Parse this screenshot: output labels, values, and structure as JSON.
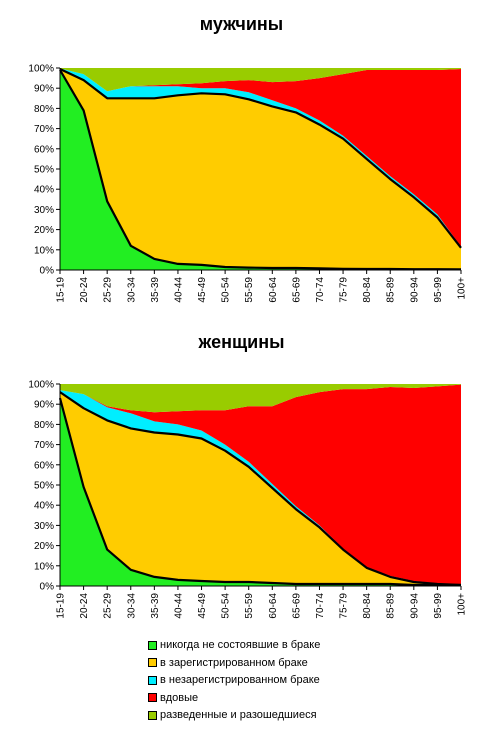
{
  "chart_data": [
    {
      "type": "area",
      "stacked": true,
      "percent": true,
      "title": "мужчины",
      "categories": [
        "15-19",
        "20-24",
        "25-29",
        "30-34",
        "35-39",
        "40-44",
        "45-49",
        "50-54",
        "55-59",
        "60-64",
        "65-69",
        "70-74",
        "75-79",
        "80-84",
        "85-89",
        "90-94",
        "95-99",
        "100+"
      ],
      "ylim": [
        0,
        100
      ],
      "yticks": [
        "0%",
        "10%",
        "20%",
        "30%",
        "40%",
        "50%",
        "60%",
        "70%",
        "80%",
        "90%",
        "100%"
      ],
      "grid": false,
      "series": [
        {
          "name": "никогда не состоявшие в браке",
          "color": "#22ee22",
          "values": [
            99,
            79,
            34,
            12,
            5.5,
            3,
            2.5,
            1.5,
            1.2,
            1,
            1,
            0.8,
            0.6,
            0.5,
            0.5,
            0.4,
            0.4,
            0.3
          ]
        },
        {
          "name": "в зарегистрированном браке",
          "color": "#ffcc00",
          "values": [
            0.5,
            15,
            51,
            73,
            79.5,
            83.5,
            85,
            85.5,
            83.3,
            80,
            77,
            71.2,
            64.4,
            54.5,
            44.5,
            35.6,
            25.6,
            10.7
          ]
        },
        {
          "name": "в незарегистрированном браке",
          "color": "#00eeff",
          "values": [
            0.3,
            3,
            3.5,
            6,
            6,
            4.5,
            2.5,
            3,
            3.5,
            3,
            2,
            2,
            1.5,
            1.5,
            1.5,
            1.5,
            1.5,
            0.5
          ]
        },
        {
          "name": "вдовые",
          "color": "#ff0000",
          "values": [
            0,
            0,
            0,
            0,
            0.5,
            1,
            2.5,
            3.5,
            6,
            9,
            13.5,
            21,
            30.5,
            42.5,
            52.5,
            61.5,
            71.5,
            88
          ]
        },
        {
          "name": "разведенные и разошедшиеся",
          "color": "#99cc00",
          "values": [
            0.2,
            3,
            11.5,
            9,
            8.5,
            8,
            7.5,
            6.5,
            6,
            7,
            6.5,
            5,
            3,
            1,
            1,
            1,
            1,
            0.5
          ]
        }
      ]
    },
    {
      "type": "area",
      "stacked": true,
      "percent": true,
      "title": "женщины",
      "categories": [
        "15-19",
        "20-24",
        "25-29",
        "30-34",
        "35-39",
        "40-44",
        "45-49",
        "50-54",
        "55-59",
        "60-64",
        "65-69",
        "70-74",
        "75-79",
        "80-84",
        "85-89",
        "90-94",
        "95-99",
        "100+"
      ],
      "ylim": [
        0,
        100
      ],
      "yticks": [
        "0%",
        "10%",
        "20%",
        "30%",
        "40%",
        "50%",
        "60%",
        "70%",
        "80%",
        "90%",
        "100%"
      ],
      "grid": false,
      "series": [
        {
          "name": "никогда не состоявшие в браке",
          "color": "#22ee22",
          "values": [
            93,
            49,
            18,
            8,
            4.5,
            3,
            2.5,
            2,
            2,
            1.5,
            1,
            1,
            1,
            1,
            1,
            0.5,
            0.5,
            0.5
          ]
        },
        {
          "name": "в зарегистрированном браке",
          "color": "#ffcc00",
          "values": [
            3,
            39,
            64,
            70,
            71.5,
            72,
            70.5,
            65,
            57,
            47,
            37,
            28,
            17,
            8,
            3.5,
            1.5,
            0.5,
            0
          ]
        },
        {
          "name": "в незарегистрированном браке",
          "color": "#00eeff",
          "values": [
            1,
            7,
            6.5,
            7.5,
            5.5,
            5,
            4,
            3,
            2.5,
            2,
            1.5,
            1,
            0.5,
            0.5,
            0.5,
            0.5,
            0.3,
            0.2
          ]
        },
        {
          "name": "вдовые",
          "color": "#ff0000",
          "values": [
            0,
            0,
            0.5,
            1.5,
            4.5,
            6.5,
            10,
            17,
            27.5,
            38.5,
            54,
            66,
            79,
            88,
            93.5,
            95.5,
            97.5,
            99
          ]
        },
        {
          "name": "разведенные и разошедшиеся",
          "color": "#99cc00",
          "values": [
            3,
            5,
            11,
            13,
            14,
            13.5,
            13,
            13,
            11,
            11,
            6.5,
            4,
            2.5,
            2.5,
            1.5,
            2,
            1.2,
            0.3
          ]
        }
      ]
    }
  ],
  "legend": [
    {
      "label": "никогда не состоявшие в браке",
      "color": "#22ee22"
    },
    {
      "label": "в зарегистрированном браке",
      "color": "#ffcc00"
    },
    {
      "label": "в незарегистрированном браке",
      "color": "#00eeff"
    },
    {
      "label": "вдовые",
      "color": "#ff0000"
    },
    {
      "label": "разведенные и разошедшиеся",
      "color": "#99cc00"
    }
  ]
}
